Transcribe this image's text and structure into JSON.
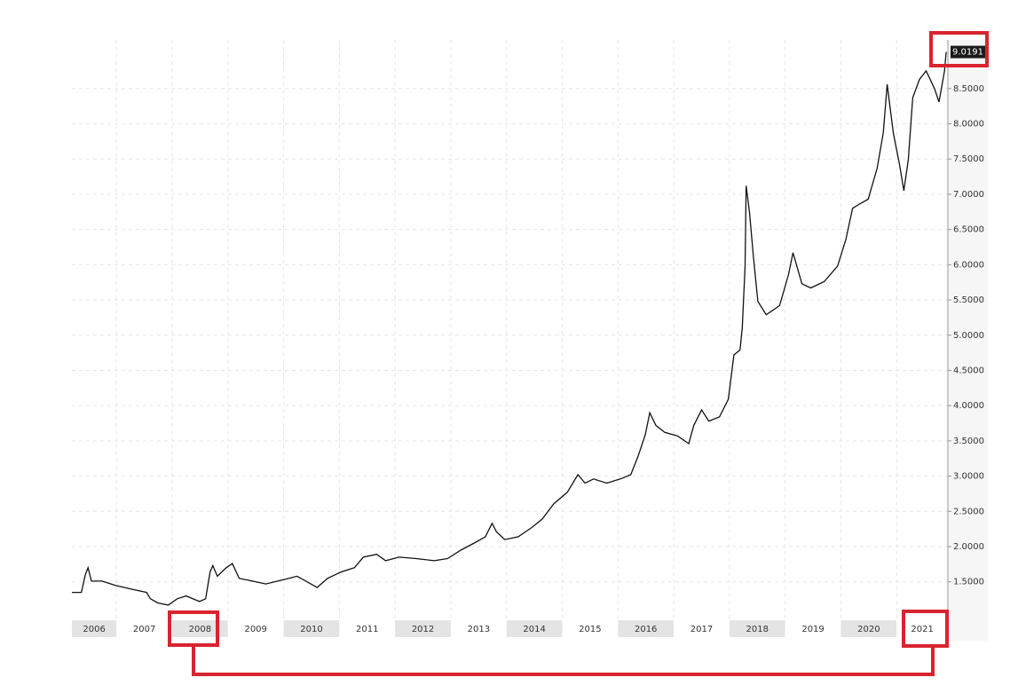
{
  "chart_data": {
    "type": "line",
    "x": [
      2006.2,
      2006.37,
      2006.44,
      2006.49,
      2006.55,
      2006.74,
      2006.98,
      2007.3,
      2007.54,
      2007.61,
      2007.74,
      2007.93,
      2008.09,
      2008.25,
      2008.49,
      2008.6,
      2008.68,
      2008.73,
      2008.81,
      2008.97,
      2009.08,
      2009.2,
      2009.44,
      2009.68,
      2010.0,
      2010.24,
      2010.4,
      2010.6,
      2010.79,
      2011.03,
      2011.27,
      2011.43,
      2011.67,
      2011.83,
      2012.07,
      2012.38,
      2012.7,
      2012.94,
      2013.18,
      2013.42,
      2013.62,
      2013.74,
      2013.82,
      2013.97,
      2014.21,
      2014.45,
      2014.64,
      2014.85,
      2015.09,
      2015.28,
      2015.41,
      2015.56,
      2015.8,
      2016.04,
      2016.23,
      2016.36,
      2016.49,
      2016.57,
      2016.68,
      2016.84,
      2017.07,
      2017.27,
      2017.36,
      2017.5,
      2017.63,
      2017.82,
      2017.98,
      2018.08,
      2018.19,
      2018.23,
      2018.28,
      2018.3,
      2018.36,
      2018.43,
      2018.51,
      2018.66,
      2018.9,
      2019.06,
      2019.14,
      2019.3,
      2019.46,
      2019.7,
      2019.94,
      2020.09,
      2020.21,
      2020.33,
      2020.49,
      2020.65,
      2020.76,
      2020.83,
      2020.94,
      2021.05,
      2021.13,
      2021.21,
      2021.29,
      2021.41,
      2021.53,
      2021.68,
      2021.76,
      2021.86,
      2021.89
    ],
    "series": [
      {
        "color": "#111111",
        "values": [
          1.35,
          1.35,
          1.6,
          1.7,
          1.51,
          1.51,
          1.45,
          1.39,
          1.35,
          1.26,
          1.2,
          1.17,
          1.26,
          1.3,
          1.22,
          1.26,
          1.64,
          1.73,
          1.58,
          1.7,
          1.76,
          1.55,
          1.51,
          1.47,
          1.53,
          1.58,
          1.51,
          1.42,
          1.55,
          1.64,
          1.7,
          1.85,
          1.89,
          1.8,
          1.85,
          1.83,
          1.8,
          1.83,
          1.95,
          2.05,
          2.14,
          2.33,
          2.21,
          2.1,
          2.14,
          2.27,
          2.39,
          2.61,
          2.77,
          3.02,
          2.9,
          2.96,
          2.9,
          2.96,
          3.02,
          3.28,
          3.59,
          3.9,
          3.72,
          3.62,
          3.57,
          3.46,
          3.72,
          3.94,
          3.78,
          3.84,
          4.09,
          4.72,
          4.79,
          5.1,
          5.98,
          7.12,
          6.74,
          6.11,
          5.48,
          5.29,
          5.42,
          5.86,
          6.17,
          5.73,
          5.67,
          5.76,
          5.98,
          6.36,
          6.8,
          6.86,
          6.93,
          7.37,
          7.87,
          8.56,
          7.87,
          7.43,
          7.05,
          7.49,
          8.37,
          8.63,
          8.75,
          8.5,
          8.31,
          8.75,
          9.02
        ]
      }
    ],
    "last_value": 9.0191,
    "xlim": [
      2006.2,
      2021.92
    ],
    "xticks": [
      2006,
      2007,
      2008,
      2009,
      2010,
      2011,
      2012,
      2013,
      2014,
      2015,
      2016,
      2017,
      2018,
      2019,
      2020,
      2021
    ],
    "ylim": [
      0.98,
      9.19
    ],
    "yticks": [
      {
        "value": 1.5,
        "label": "1.5000"
      },
      {
        "value": 2,
        "label": "2.0000"
      },
      {
        "value": 2.5,
        "label": "2.5000"
      },
      {
        "value": 3,
        "label": "3.0000"
      },
      {
        "value": 3.5,
        "label": "3.5000"
      },
      {
        "value": 4,
        "label": "4.0000"
      },
      {
        "value": 4.5,
        "label": "4.5000"
      },
      {
        "value": 5,
        "label": "5.0000"
      },
      {
        "value": 5.5,
        "label": "5.5000"
      },
      {
        "value": 6,
        "label": "6.0000"
      },
      {
        "value": 6.5,
        "label": "6.5000"
      },
      {
        "value": 7,
        "label": "7.0000"
      },
      {
        "value": 7.5,
        "label": "7.5000"
      },
      {
        "value": 8,
        "label": "8.0000"
      },
      {
        "value": 8.5,
        "label": "8.5000"
      }
    ],
    "grid": true
  }
}
